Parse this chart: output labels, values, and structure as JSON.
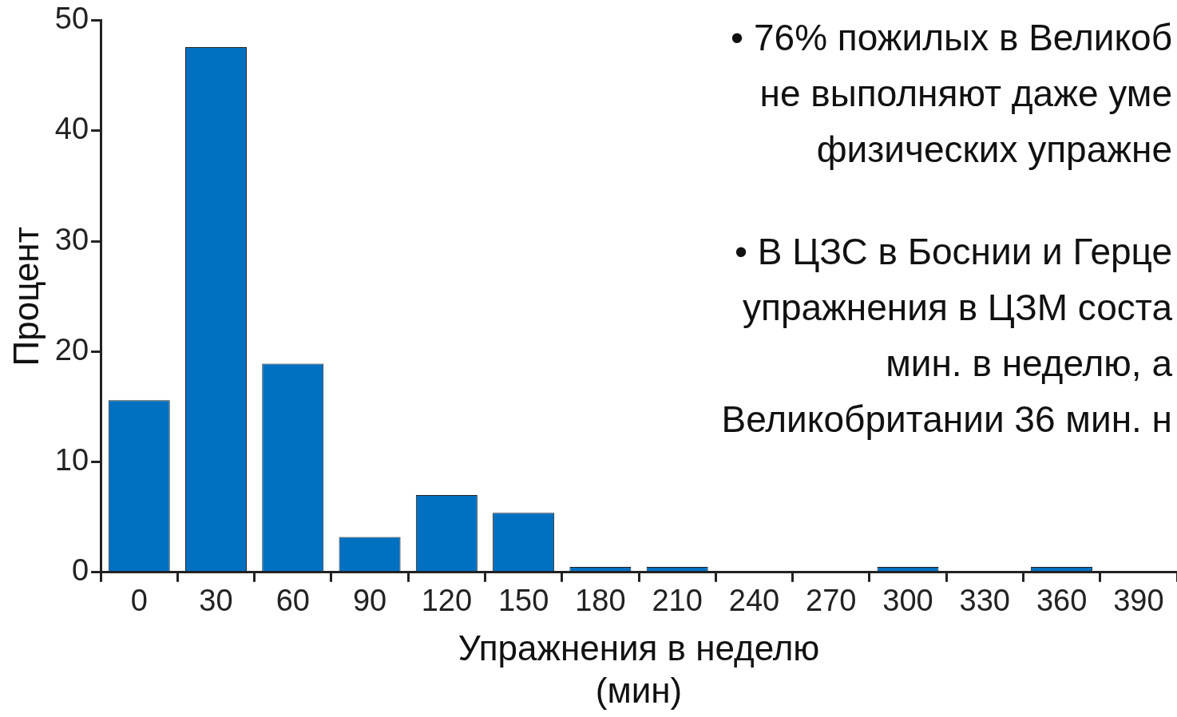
{
  "chart_data": {
    "type": "bar",
    "xlabel": "Упражнения в неделю\n(мин)",
    "ylabel": "Процент",
    "categories": [
      "0",
      "30",
      "60",
      "90",
      "120",
      "150",
      "180",
      "210",
      "240",
      "270",
      "300",
      "330",
      "360",
      "390"
    ],
    "values": [
      15.6,
      47.6,
      18.9,
      3.2,
      7.0,
      5.4,
      0.5,
      0.5,
      0,
      0,
      0.5,
      0,
      0.5,
      0
    ],
    "color": "#0070c0",
    "ylim": [
      0,
      50
    ],
    "yticks": [
      0,
      10,
      20,
      30,
      40,
      50
    ],
    "grid": false,
    "legend": false,
    "annotations": [
      "•   76% пожилых в Великоб\nне выполняют даже уме\nфизических упражне",
      "•   В ЦЗС в Боснии и Герце\nупражнения в ЦЗМ соста\nмин. в неделю, а\nВеликобритании 36 мин. н"
    ]
  }
}
